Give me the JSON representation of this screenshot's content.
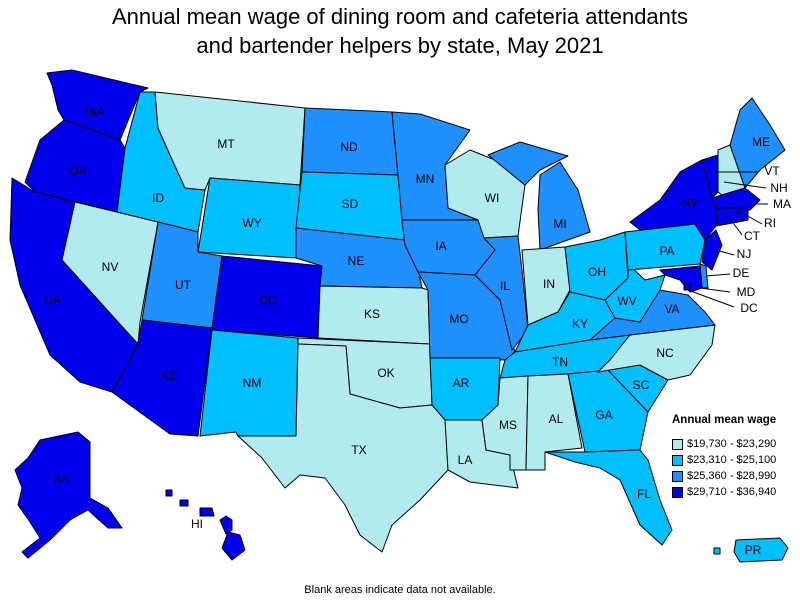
{
  "title": {
    "line1": "Annual mean wage of dining room and cafeteria attendants",
    "line2": "and bartender helpers by state, May 2021"
  },
  "legend": {
    "title": "Annual mean wage",
    "items": [
      {
        "label": "$19,730 - $23,290",
        "color": "#b2ebee"
      },
      {
        "label": "$23,310 - $25,100",
        "color": "#00bfff"
      },
      {
        "label": "$25,360 - $28,990",
        "color": "#1e90ff"
      },
      {
        "label": "$29,710 - $36,940",
        "color": "#0000ee"
      }
    ]
  },
  "footnote": "Blank areas indicate data not available.",
  "states": {
    "WA": {
      "label": "WA",
      "class": 4
    },
    "OR": {
      "label": "OR",
      "class": 4
    },
    "CA": {
      "label": "CA",
      "class": 4
    },
    "NV": {
      "label": "NV",
      "class": 1
    },
    "ID": {
      "label": "ID",
      "class": 2
    },
    "MT": {
      "label": "MT",
      "class": 1
    },
    "WY": {
      "label": "WY",
      "class": 2
    },
    "UT": {
      "label": "UT",
      "class": 3
    },
    "AZ": {
      "label": "AZ",
      "class": 4
    },
    "CO": {
      "label": "CO",
      "class": 4
    },
    "NM": {
      "label": "NM",
      "class": 2
    },
    "ND": {
      "label": "ND",
      "class": 3
    },
    "SD": {
      "label": "SD",
      "class": 2
    },
    "NE": {
      "label": "NE",
      "class": 3
    },
    "KS": {
      "label": "KS",
      "class": 1
    },
    "OK": {
      "label": "OK",
      "class": 1
    },
    "TX": {
      "label": "TX",
      "class": 1
    },
    "MN": {
      "label": "MN",
      "class": 3
    },
    "IA": {
      "label": "IA",
      "class": 3
    },
    "MO": {
      "label": "MO",
      "class": 3
    },
    "AR": {
      "label": "AR",
      "class": 2
    },
    "LA": {
      "label": "LA",
      "class": 1
    },
    "WI": {
      "label": "WI",
      "class": 1
    },
    "IL": {
      "label": "IL",
      "class": 3
    },
    "MI": {
      "label": "MI",
      "class": 3
    },
    "IN": {
      "label": "IN",
      "class": 1
    },
    "OH": {
      "label": "OH",
      "class": 2
    },
    "KY": {
      "label": "KY",
      "class": 2
    },
    "TN": {
      "label": "TN",
      "class": 2
    },
    "MS": {
      "label": "MS",
      "class": 1
    },
    "AL": {
      "label": "AL",
      "class": 1
    },
    "GA": {
      "label": "GA",
      "class": 2
    },
    "FL": {
      "label": "FL",
      "class": 2
    },
    "SC": {
      "label": "SC",
      "class": 2
    },
    "NC": {
      "label": "NC",
      "class": 1
    },
    "VA": {
      "label": "VA",
      "class": 3
    },
    "WV": {
      "label": "WV",
      "class": 2
    },
    "PA": {
      "label": "PA",
      "class": 2
    },
    "NY": {
      "label": "NY",
      "class": 4
    },
    "VT": {
      "label": "VT",
      "class": 4
    },
    "NH": {
      "label": "NH",
      "class": 1
    },
    "ME": {
      "label": "ME",
      "class": 3
    },
    "MA": {
      "label": "MA",
      "class": 4
    },
    "RI": {
      "label": "RI",
      "class": 4
    },
    "CT": {
      "label": "CT",
      "class": 4
    },
    "NJ": {
      "label": "NJ",
      "class": 4
    },
    "DE": {
      "label": "DE",
      "class": 3
    },
    "MD": {
      "label": "MD",
      "class": 4
    },
    "DC": {
      "label": "DC",
      "class": 4
    },
    "AK": {
      "label": "AK",
      "class": 4
    },
    "HI": {
      "label": "HI",
      "class": 4
    },
    "PR": {
      "label": "PR",
      "class": 2
    }
  }
}
